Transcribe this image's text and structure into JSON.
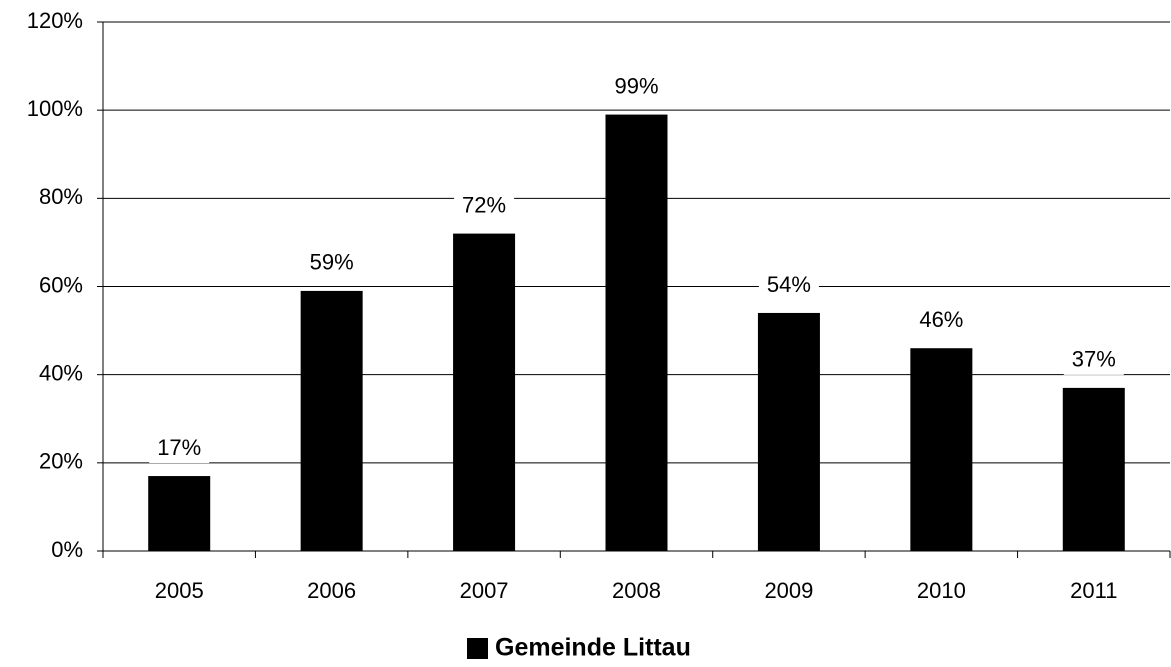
{
  "chart_data": {
    "type": "bar",
    "categories": [
      "2005",
      "2006",
      "2007",
      "2008",
      "2009",
      "2010",
      "2011"
    ],
    "series": [
      {
        "name": "Gemeinde Littau",
        "color": "#000000",
        "values": [
          17,
          59,
          72,
          99,
          54,
          46,
          37
        ],
        "value_labels": [
          "17%",
          "59%",
          "72%",
          "99%",
          "54%",
          "46%",
          "37%"
        ]
      }
    ],
    "ylim": [
      0,
      120
    ],
    "yticks": [
      {
        "value": 0,
        "label": "0%"
      },
      {
        "value": 20,
        "label": "20%"
      },
      {
        "value": 40,
        "label": "40%"
      },
      {
        "value": 60,
        "label": "60%"
      },
      {
        "value": 80,
        "label": "80%"
      },
      {
        "value": 100,
        "label": "100%"
      },
      {
        "value": 120,
        "label": "120%"
      }
    ],
    "grid": true,
    "legend": "bottom"
  }
}
